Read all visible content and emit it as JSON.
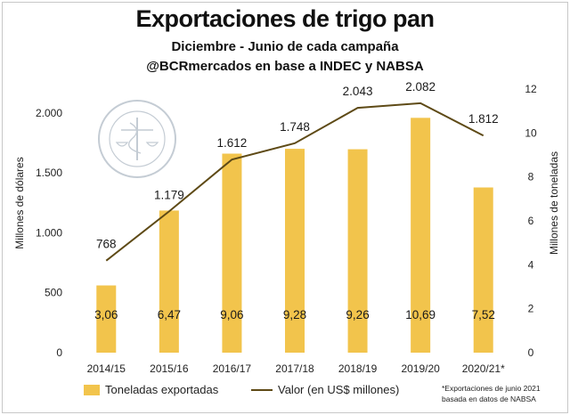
{
  "title": "Exportaciones de trigo pan",
  "subtitle1": "Diciembre - Junio de cada campaña",
  "subtitle2": "@BCRmercados en base a INDEC y NABSA",
  "footnote_line1": "*Exportaciones de junio 2021",
  "footnote_line2": "basada en datos de NABSA",
  "chart_data": {
    "type": "bar+line",
    "categories": [
      "2014/15",
      "2015/16",
      "2016/17",
      "2017/18",
      "2018/19",
      "2019/20",
      "2020/21*"
    ],
    "series": [
      {
        "name": "Toneladas exportadas",
        "type": "bar",
        "axis": "right",
        "values": [
          3.06,
          6.47,
          9.06,
          9.28,
          9.26,
          10.69,
          7.52
        ],
        "labels": [
          "3,06",
          "6,47",
          "9,06",
          "9,28",
          "9,26",
          "10,69",
          "7,52"
        ],
        "color": "#F2C44C"
      },
      {
        "name": "Valor (en US$ millones)",
        "type": "line",
        "axis": "left",
        "values": [
          768,
          1179,
          1612,
          1748,
          2043,
          2082,
          1812
        ],
        "labels": [
          "768",
          "1.179",
          "1.612",
          "1.748",
          "2.043",
          "2.082",
          "1.812"
        ],
        "color": "#5E4A16"
      }
    ],
    "y_left": {
      "label": "Millones de dólares",
      "range": [
        0,
        2200
      ],
      "ticks": [
        0,
        500,
        1000,
        1500,
        2000
      ],
      "tick_labels": [
        "0",
        "500",
        "1.000",
        "1.500",
        "2.000"
      ]
    },
    "y_right": {
      "label": "Millones de toneladas",
      "range": [
        0,
        12
      ],
      "ticks": [
        0,
        2,
        4,
        6,
        8,
        10,
        12
      ],
      "tick_labels": [
        "0",
        "2",
        "4",
        "6",
        "8",
        "10",
        "12"
      ]
    },
    "grid": false,
    "legend": "bottom"
  }
}
